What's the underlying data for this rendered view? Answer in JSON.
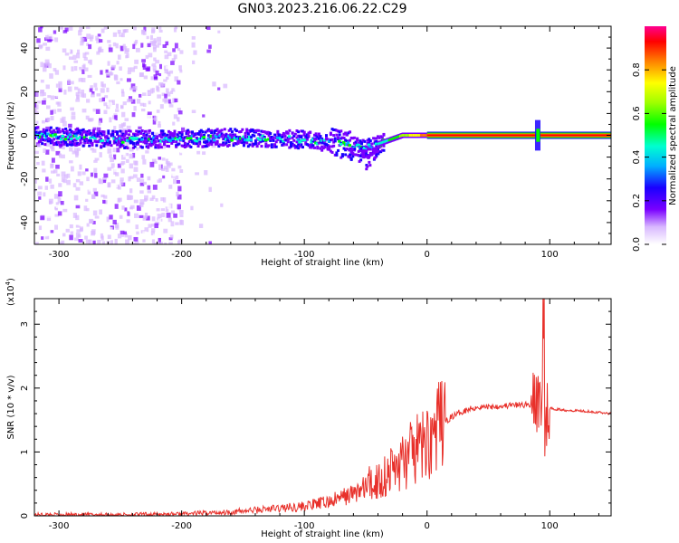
{
  "title": "GN03.2023.216.06.22.C29",
  "chart_data": [
    {
      "type": "heatmap",
      "xlabel": "Height of straight line (km)",
      "ylabel": "Frequency (Hz)",
      "xlim": [
        -320,
        150
      ],
      "ylim": [
        -50,
        50
      ],
      "x_ticks": [
        -300,
        -200,
        -100,
        0,
        100
      ],
      "y_ticks": [
        -40,
        -20,
        0,
        20,
        40
      ],
      "colorbar": {
        "label": "Normalized spectral amplitude",
        "range": [
          0,
          1
        ],
        "ticks": [
          "0.0",
          "0.2",
          "0.4",
          "0.6",
          "0.8"
        ]
      },
      "ridge_frequency_hz": [
        {
          "x": -320,
          "y": 0
        },
        {
          "x": -250,
          "y": -2
        },
        {
          "x": -150,
          "y": -1
        },
        {
          "x": -100,
          "y": -2
        },
        {
          "x": -70,
          "y": -4
        },
        {
          "x": -50,
          "y": -6
        },
        {
          "x": -35,
          "y": -3
        },
        {
          "x": -20,
          "y": 0
        },
        {
          "x": 0,
          "y": 0
        },
        {
          "x": 150,
          "y": 0
        }
      ]
    },
    {
      "type": "line",
      "xlabel": "Height of straight line (km)",
      "ylabel": "SNR (10 * v/v)",
      "scale_label": "(x10",
      "scale_exp": "4",
      "xlim": [
        -320,
        150
      ],
      "ylim": [
        0,
        3.4
      ],
      "x_ticks": [
        -300,
        -200,
        -100,
        0,
        100
      ],
      "y_ticks": [
        0,
        1,
        2,
        3
      ],
      "series": [
        {
          "color": "#e8302a",
          "x": [
            -320,
            -250,
            -200,
            -160,
            -140,
            -120,
            -100,
            -80,
            -60,
            -40,
            -20,
            0,
            10,
            20,
            30,
            40,
            60,
            80,
            90,
            94,
            96,
            98,
            100,
            110,
            130,
            150
          ],
          "y": [
            0.02,
            0.02,
            0.03,
            0.06,
            0.09,
            0.12,
            0.15,
            0.22,
            0.35,
            0.55,
            0.85,
            1.15,
            1.4,
            1.55,
            1.65,
            1.7,
            1.72,
            1.74,
            1.75,
            1.9,
            1.0,
            1.7,
            1.68,
            1.66,
            1.64,
            1.6
          ]
        }
      ]
    }
  ]
}
